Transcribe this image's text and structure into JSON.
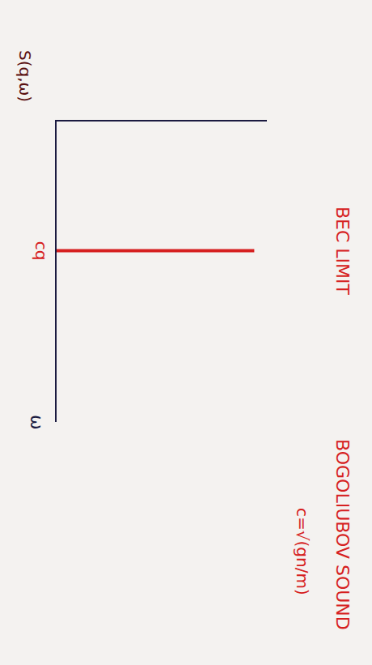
{
  "chart_data": {
    "type": "line",
    "title": "BEC LIMIT",
    "subtitle": "BOGOLIUBOV SOUND",
    "annotations": [
      {
        "text": "c=√(gn/m)"
      }
    ],
    "xlabel": "ω",
    "ylabel": "S(q,ω)",
    "x": [
      0.43,
      0.43
    ],
    "values": [
      0,
      0.94
    ],
    "color": "#d62020",
    "xlim": [
      0,
      1
    ],
    "ylim": [
      0,
      1
    ],
    "xticks": [
      {
        "value": 0.43,
        "label": "cq"
      }
    ],
    "tick_labels": "x",
    "grid": false
  }
}
